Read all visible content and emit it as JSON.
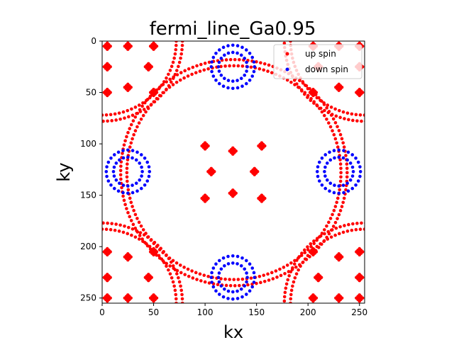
{
  "chart_data": {
    "type": "scatter",
    "title": "fermi_line_Ga0.95",
    "xlabel": "kx",
    "ylabel": "ky",
    "xlim": [
      0,
      255
    ],
    "ylim": [
      255,
      0
    ],
    "y_inverted": true,
    "x_ticks": [
      "0",
      "50",
      "100",
      "150",
      "200",
      "250"
    ],
    "y_ticks": [
      "0",
      "50",
      "100",
      "150",
      "200",
      "250"
    ],
    "legend_placement": "top-right",
    "series": [
      {
        "name": "up spin",
        "color": "#ff0000",
        "features": {
          "arcs": [
            {
              "cx": 0,
              "cy": 0,
              "r": 78
            },
            {
              "cx": 255,
              "cy": 0,
              "r": 78
            },
            {
              "cx": 0,
              "cy": 255,
              "r": 78
            },
            {
              "cx": 255,
              "cy": 255,
              "r": 78
            },
            {
              "cx": 0,
              "cy": 0,
              "r": 72
            },
            {
              "cx": 255,
              "cy": 0,
              "r": 72
            },
            {
              "cx": 0,
              "cy": 255,
              "r": 72
            },
            {
              "cx": 255,
              "cy": 255,
              "r": 72
            },
            {
              "cx": 128,
              "cy": 128,
              "r": 110
            },
            {
              "cx": 128,
              "cy": 128,
              "r": 104
            }
          ],
          "clusters": [
            [
              25,
              5
            ],
            [
              25,
              45
            ],
            [
              5,
              25
            ],
            [
              45,
              25
            ],
            [
              50,
              50
            ],
            [
              5,
              50
            ],
            [
              50,
              5
            ],
            [
              5,
              5
            ],
            [
              230,
              5
            ],
            [
              230,
              45
            ],
            [
              210,
              25
            ],
            [
              250,
              25
            ],
            [
              205,
              50
            ],
            [
              250,
              50
            ],
            [
              205,
              5
            ],
            [
              250,
              5
            ],
            [
              25,
              250
            ],
            [
              25,
              210
            ],
            [
              5,
              230
            ],
            [
              45,
              230
            ],
            [
              50,
              205
            ],
            [
              5,
              205
            ],
            [
              50,
              250
            ],
            [
              5,
              250
            ],
            [
              230,
              250
            ],
            [
              230,
              210
            ],
            [
              210,
              230
            ],
            [
              250,
              230
            ],
            [
              205,
              205
            ],
            [
              250,
              205
            ],
            [
              205,
              250
            ],
            [
              250,
              250
            ],
            [
              100,
              102
            ],
            [
              155,
              102
            ],
            [
              100,
              153
            ],
            [
              155,
              153
            ],
            [
              127,
              107
            ],
            [
              127,
              148
            ],
            [
              106,
              127
            ],
            [
              148,
              127
            ]
          ]
        }
      },
      {
        "name": "down spin",
        "color": "#0000ff",
        "features": {
          "rings": [
            {
              "cx": 127,
              "cy": 25,
              "r_outer": 21,
              "r_inner": 14
            },
            {
              "cx": 25,
              "cy": 127,
              "r_outer": 21,
              "r_inner": 14
            },
            {
              "cx": 230,
              "cy": 127,
              "r_outer": 21,
              "r_inner": 14
            },
            {
              "cx": 127,
              "cy": 230,
              "r_outer": 21,
              "r_inner": 14
            }
          ]
        }
      }
    ]
  }
}
